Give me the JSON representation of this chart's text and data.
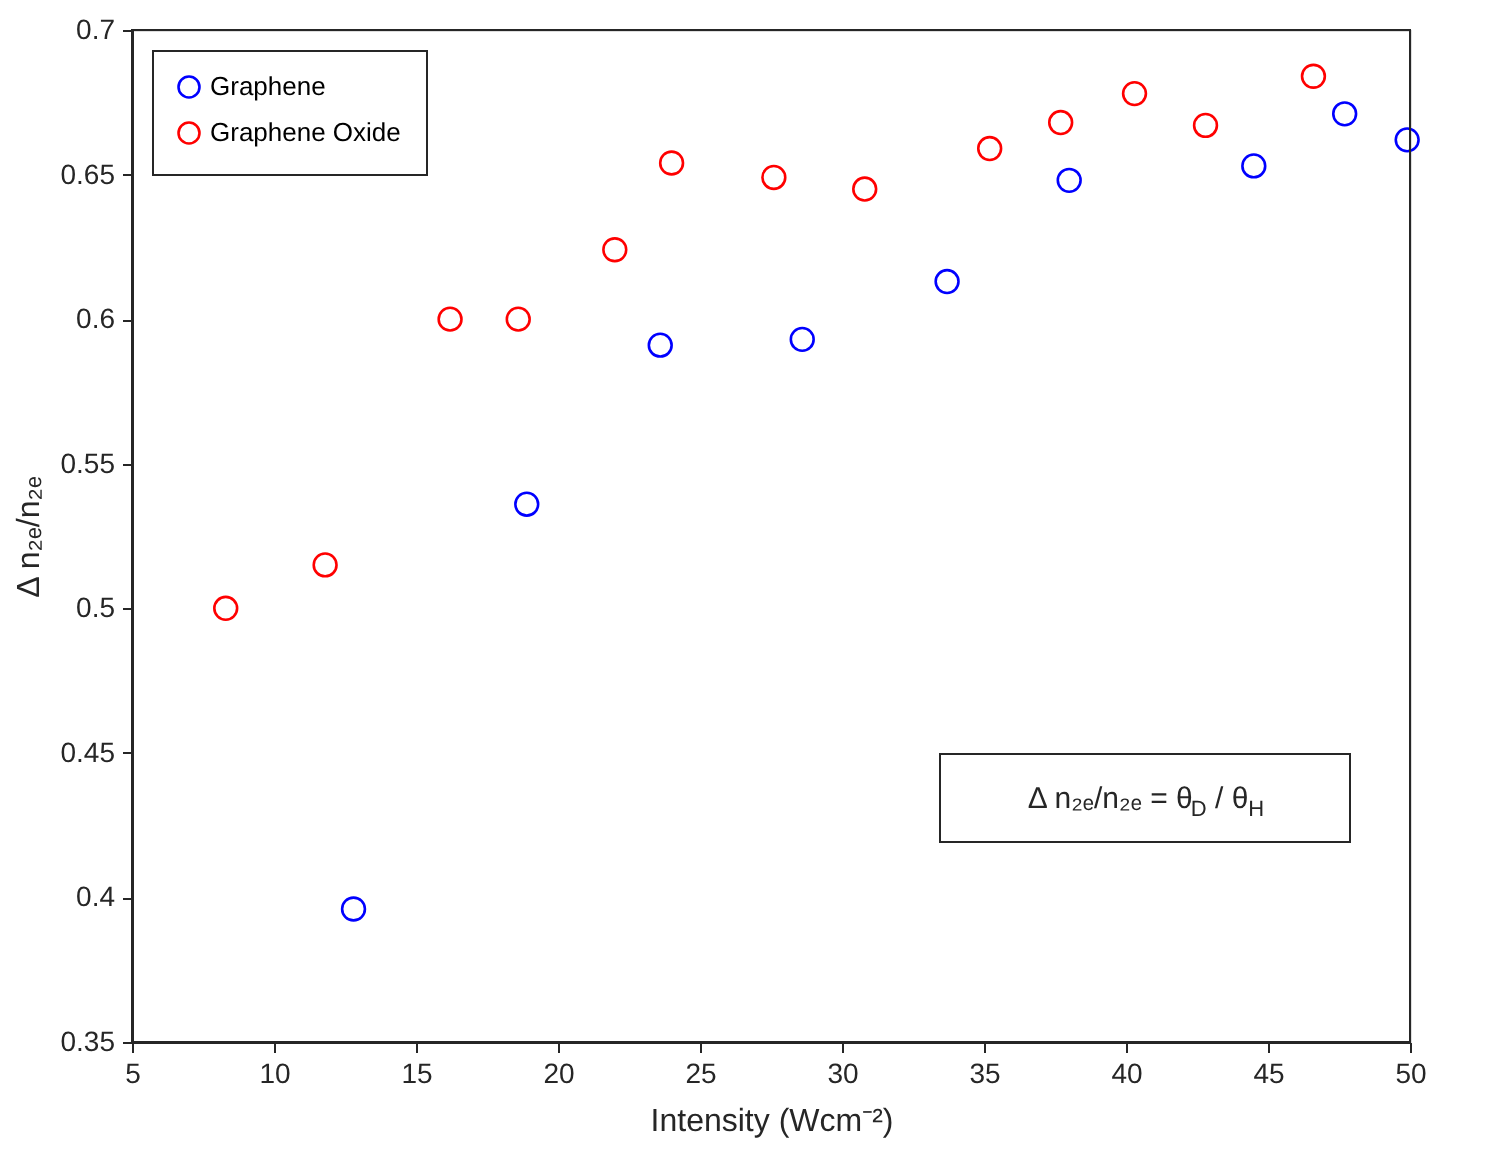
{
  "chart_data": {
    "type": "scatter",
    "xlabel": "Intensity (Wcm⁻²)",
    "ylabel": "Δ n₂ₑ/n₂ₑ",
    "xlim": [
      5,
      50
    ],
    "xticks": [
      5,
      10,
      15,
      20,
      25,
      30,
      35,
      40,
      45,
      50
    ],
    "ylim": [
      0.35,
      0.7
    ],
    "yticks": [
      0.35,
      0.4,
      0.45,
      0.5,
      0.55,
      0.6,
      0.65,
      0.7
    ],
    "grid": false,
    "legend": "top left",
    "marker": "circle",
    "annotations": [
      "Δ n₂ₑ/n₂ₑ = θ$_{D}$ / θ$_{H}$"
    ],
    "series": [
      {
        "name": "Graphene",
        "color": "#0000ff",
        "x": [
          12.8,
          18.9,
          23.6,
          28.6,
          33.7,
          38.0,
          44.5,
          47.7,
          49.9
        ],
        "values": [
          0.396,
          0.536,
          0.591,
          0.593,
          0.613,
          0.648,
          0.653,
          0.671,
          0.662
        ]
      },
      {
        "name": "Graphene Oxide",
        "color": "#ff0000",
        "x": [
          8.3,
          11.8,
          16.2,
          18.6,
          22.0,
          24.0,
          27.6,
          30.8,
          35.2,
          37.7,
          40.3,
          42.8,
          46.6
        ],
        "values": [
          0.5,
          0.515,
          0.6,
          0.6,
          0.624,
          0.654,
          0.649,
          0.645,
          0.659,
          0.668,
          0.678,
          0.667,
          0.684
        ]
      }
    ]
  }
}
